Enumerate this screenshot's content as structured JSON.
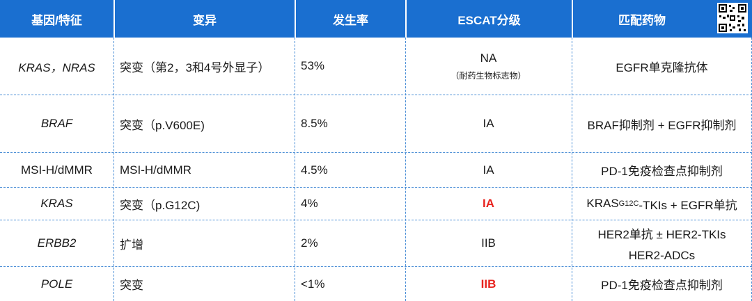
{
  "header": {
    "col1": "基因/特征",
    "col2": "变异",
    "col3": "发生率",
    "col4": "ESCAT分级",
    "col5": "匹配药物"
  },
  "rows": [
    {
      "gene": "KRAS，NRAS",
      "variant": "突变（第2，3和4号外显子）",
      "rate": "53%",
      "escat": "NA",
      "escat_note": "（耐药生物标志物）",
      "drug": "EGFR单克隆抗体"
    },
    {
      "gene": "BRAF",
      "variant": "突变（p.V600E)",
      "rate": "8.5%",
      "escat": "IA",
      "drug": "BRAF抑制剂 + EGFR抑制剂"
    },
    {
      "gene": "MSI-H/dMMR",
      "variant": "MSI-H/dMMR",
      "rate": "4.5%",
      "escat": "IA",
      "drug": "PD-1免疫检查点抑制剂"
    },
    {
      "gene": "KRAS",
      "variant": "突变（p.G12C)",
      "rate": "4%",
      "escat": "IA",
      "drug_pre": "KRAS",
      "drug_sup": "G12C",
      "drug_post": "-TKIs + EGFR单抗"
    },
    {
      "gene": "ERBB2",
      "variant": "扩增",
      "rate": "2%",
      "escat": "IIB",
      "drug_line1": "HER2单抗 ± HER2-TKIs",
      "drug_line2": "HER2-ADCs"
    },
    {
      "gene": "POLE",
      "variant": "突变",
      "rate": "<1%",
      "escat": "IIB",
      "drug": "PD-1免疫检查点抑制剂"
    }
  ],
  "colors": {
    "header_bg": "#1a6fd0",
    "highlight": "#e8231e",
    "divider": "#4a8ed6"
  },
  "icons": {
    "corner": "qr-code-icon"
  }
}
